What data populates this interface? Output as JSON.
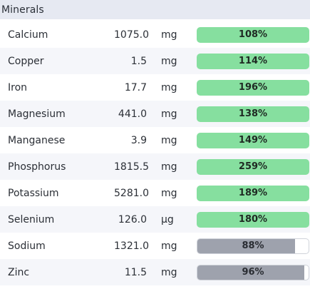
{
  "section": {
    "title": "Minerals"
  },
  "colors": {
    "over_target": "#86df9f",
    "under_target": "#9ea2ad",
    "header_bg": "#e6e9f2",
    "alt_row_bg": "#f5f6fa"
  },
  "minerals": [
    {
      "name": "Calcium",
      "amount": "1075.0",
      "unit": "mg",
      "percent_label": "108%",
      "percent": 108
    },
    {
      "name": "Copper",
      "amount": "1.5",
      "unit": "mg",
      "percent_label": "114%",
      "percent": 114
    },
    {
      "name": "Iron",
      "amount": "17.7",
      "unit": "mg",
      "percent_label": "196%",
      "percent": 196
    },
    {
      "name": "Magnesium",
      "amount": "441.0",
      "unit": "mg",
      "percent_label": "138%",
      "percent": 138
    },
    {
      "name": "Manganese",
      "amount": "3.9",
      "unit": "mg",
      "percent_label": "149%",
      "percent": 149
    },
    {
      "name": "Phosphorus",
      "amount": "1815.5",
      "unit": "mg",
      "percent_label": "259%",
      "percent": 259
    },
    {
      "name": "Potassium",
      "amount": "5281.0",
      "unit": "mg",
      "percent_label": "189%",
      "percent": 189
    },
    {
      "name": "Selenium",
      "amount": "126.0",
      "unit": "µg",
      "percent_label": "180%",
      "percent": 180
    },
    {
      "name": "Sodium",
      "amount": "1321.0",
      "unit": "mg",
      "percent_label": "88%",
      "percent": 88
    },
    {
      "name": "Zinc",
      "amount": "11.5",
      "unit": "mg",
      "percent_label": "96%",
      "percent": 96
    }
  ]
}
